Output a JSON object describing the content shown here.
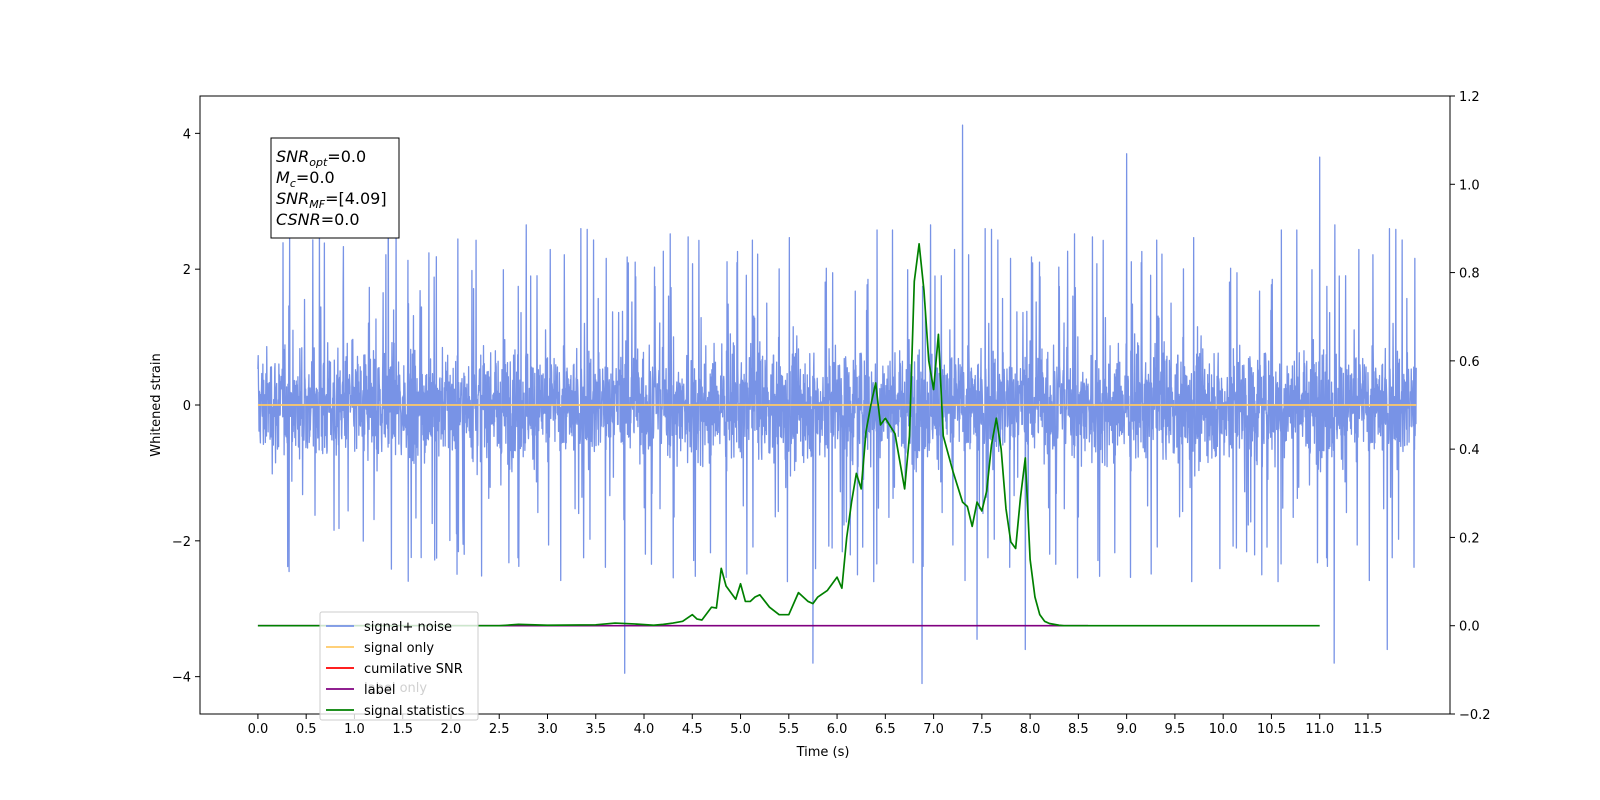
{
  "chart_data": {
    "type": "line",
    "xlabel": "Time (s)",
    "ylabel": "Whitened strain",
    "xlim": [
      -0.6,
      12.35
    ],
    "ylim_left": [
      -4.55,
      4.55
    ],
    "ylim_right": [
      -0.2,
      1.2
    ],
    "x_ticks": [
      "0.0",
      "0.5",
      "1.0",
      "1.5",
      "2.0",
      "2.5",
      "3.0",
      "3.5",
      "4.0",
      "4.5",
      "5.0",
      "5.5",
      "6.0",
      "6.5",
      "7.0",
      "7.5",
      "8.0",
      "8.5",
      "9.0",
      "9.5",
      "10.0",
      "10.5",
      "11.0",
      "11.5"
    ],
    "y_ticks_left": [
      "4",
      "2",
      "0",
      "−2",
      "−4"
    ],
    "y_ticks_right": [
      "1.2",
      "1.0",
      "0.8",
      "0.6",
      "0.4",
      "0.2",
      "0.0",
      "−0.2"
    ],
    "info_box": {
      "lines": [
        {
          "var": "SNR",
          "sub": "opt",
          "value": "=0.0"
        },
        {
          "var": "M",
          "sub": "c",
          "value": "=0.0"
        },
        {
          "var": "SNR",
          "sub": "MF",
          "value": "=[4.09]"
        },
        {
          "var": "CSNR",
          "sub": "",
          "value": "=0.0"
        }
      ]
    },
    "legend": {
      "placement": "lower-left",
      "entries": [
        {
          "label": "signal+ noise",
          "color": "#7893e6"
        },
        {
          "label": "signal only",
          "color": "#ffc966"
        },
        {
          "label": "cumilative SNR",
          "color": "#ff0000"
        },
        {
          "label": "label",
          "color": "#800080"
        },
        {
          "label": "signal statistics",
          "color": "#008000"
        }
      ],
      "occluded_text": "label only"
    },
    "series": [
      {
        "name": "signal+ noise",
        "axis": "left",
        "color": "#7893e6",
        "style": "noise",
        "x_range": [
          0.0,
          12.0
        ],
        "core_amplitude": 1.2,
        "typical_peak_range": [
          -2.6,
          2.7
        ],
        "notable_peaks": [
          {
            "x": 7.3,
            "y": 4.12
          },
          {
            "x": 9.0,
            "y": 3.7
          },
          {
            "x": 11.0,
            "y": 3.65
          },
          {
            "x": 1.35,
            "y": 3.55
          },
          {
            "x": 3.8,
            "y": 3.35
          },
          {
            "x": 6.88,
            "y": -4.1
          },
          {
            "x": 3.8,
            "y": -3.95
          },
          {
            "x": 11.15,
            "y": -3.8
          },
          {
            "x": 5.75,
            "y": -3.8
          },
          {
            "x": 7.95,
            "y": -3.6
          },
          {
            "x": 11.7,
            "y": -3.6
          },
          {
            "x": 7.45,
            "y": -3.45
          }
        ]
      },
      {
        "name": "signal only",
        "axis": "left",
        "color": "#ffc966",
        "x": [
          0.0,
          12.0
        ],
        "y": [
          0.0,
          0.0
        ]
      },
      {
        "name": "label",
        "axis": "right",
        "color": "#800080",
        "x": [
          0.0,
          8.6
        ],
        "y": [
          0.0,
          0.0
        ]
      },
      {
        "name": "signal statistics",
        "axis": "right",
        "color": "#008000",
        "x": [
          0.0,
          2.5,
          2.7,
          3.0,
          3.5,
          3.7,
          3.9,
          4.1,
          4.2,
          4.3,
          4.4,
          4.5,
          4.55,
          4.6,
          4.7,
          4.75,
          4.8,
          4.85,
          4.9,
          4.95,
          5.0,
          5.05,
          5.1,
          5.15,
          5.2,
          5.3,
          5.4,
          5.5,
          5.6,
          5.7,
          5.75,
          5.8,
          5.9,
          6.0,
          6.05,
          6.1,
          6.15,
          6.2,
          6.25,
          6.3,
          6.35,
          6.4,
          6.45,
          6.5,
          6.6,
          6.7,
          6.75,
          6.8,
          6.85,
          6.9,
          6.95,
          7.0,
          7.05,
          7.1,
          7.15,
          7.2,
          7.3,
          7.35,
          7.4,
          7.45,
          7.5,
          7.55,
          7.6,
          7.65,
          7.7,
          7.75,
          7.8,
          7.85,
          7.9,
          7.95,
          8.0,
          8.05,
          8.1,
          8.15,
          8.2,
          8.25,
          8.3,
          8.35,
          8.45,
          8.55,
          8.65,
          9.5,
          11.0
        ],
        "y": [
          0.0,
          0.0,
          0.003,
          0.001,
          0.002,
          0.006,
          0.004,
          0.001,
          0.003,
          0.006,
          0.01,
          0.025,
          0.015,
          0.013,
          0.042,
          0.04,
          0.13,
          0.09,
          0.075,
          0.06,
          0.095,
          0.055,
          0.055,
          0.065,
          0.07,
          0.042,
          0.025,
          0.025,
          0.075,
          0.055,
          0.05,
          0.065,
          0.08,
          0.11,
          0.085,
          0.2,
          0.28,
          0.345,
          0.31,
          0.44,
          0.5,
          0.55,
          0.455,
          0.47,
          0.435,
          0.31,
          0.43,
          0.78,
          0.865,
          0.76,
          0.6,
          0.535,
          0.66,
          0.43,
          0.39,
          0.35,
          0.28,
          0.27,
          0.225,
          0.28,
          0.26,
          0.305,
          0.41,
          0.47,
          0.4,
          0.265,
          0.19,
          0.175,
          0.29,
          0.38,
          0.15,
          0.065,
          0.025,
          0.01,
          0.005,
          0.003,
          0.001,
          0.0,
          0.0,
          0.0,
          0.0,
          0.0,
          0.0
        ]
      }
    ]
  }
}
